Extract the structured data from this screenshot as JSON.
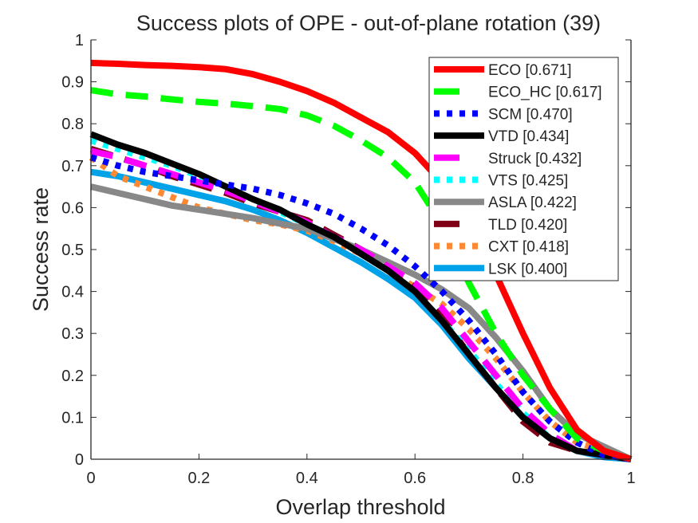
{
  "chart_data": {
    "type": "line",
    "title": "Success plots of OPE - out-of-plane rotation (39)",
    "xlabel": "Overlap threshold",
    "ylabel": "Success rate",
    "xlim": [
      0,
      1
    ],
    "ylim": [
      0,
      1
    ],
    "xticks": [
      0,
      0.2,
      0.4,
      0.6,
      0.8,
      1
    ],
    "xtick_labels": [
      "0",
      "0.2",
      "0.4",
      "0.6",
      "0.8",
      "1"
    ],
    "yticks": [
      0,
      0.1,
      0.2,
      0.3,
      0.4,
      0.5,
      0.6,
      0.7,
      0.8,
      0.9,
      1
    ],
    "ytick_labels": [
      "0",
      "0.1",
      "0.2",
      "0.3",
      "0.4",
      "0.5",
      "0.6",
      "0.7",
      "0.8",
      "0.9",
      "1"
    ],
    "grid": false,
    "legend_position": "top-right",
    "x": [
      0,
      0.05,
      0.1,
      0.15,
      0.2,
      0.25,
      0.3,
      0.35,
      0.4,
      0.45,
      0.5,
      0.55,
      0.6,
      0.65,
      0.7,
      0.75,
      0.8,
      0.85,
      0.9,
      0.95,
      1.0
    ],
    "series": [
      {
        "name": "ECO",
        "label": "ECO [0.671]",
        "auc": 0.671,
        "color": "#ff0000",
        "style": "solid",
        "values": [
          0.945,
          0.943,
          0.94,
          0.938,
          0.935,
          0.93,
          0.918,
          0.9,
          0.878,
          0.85,
          0.815,
          0.78,
          0.73,
          0.66,
          0.58,
          0.44,
          0.3,
          0.17,
          0.07,
          0.02,
          0.0
        ]
      },
      {
        "name": "ECO_HC",
        "label": "ECO_HC [0.617]",
        "auc": 0.617,
        "color": "#00ff00",
        "style": "dashed",
        "values": [
          0.88,
          0.87,
          0.865,
          0.858,
          0.852,
          0.848,
          0.842,
          0.835,
          0.82,
          0.795,
          0.76,
          0.72,
          0.66,
          0.56,
          0.42,
          0.3,
          0.2,
          0.12,
          0.05,
          0.02,
          0.0
        ]
      },
      {
        "name": "SCM",
        "label": "SCM [0.470]",
        "auc": 0.47,
        "color": "#0000ff",
        "style": "dotted",
        "values": [
          0.72,
          0.7,
          0.685,
          0.675,
          0.665,
          0.655,
          0.645,
          0.63,
          0.61,
          0.585,
          0.55,
          0.51,
          0.46,
          0.4,
          0.33,
          0.25,
          0.16,
          0.09,
          0.04,
          0.01,
          0.0
        ]
      },
      {
        "name": "VTD",
        "label": "VTD [0.434]",
        "auc": 0.434,
        "color": "#000000",
        "style": "solid",
        "values": [
          0.775,
          0.75,
          0.73,
          0.705,
          0.68,
          0.65,
          0.62,
          0.595,
          0.56,
          0.53,
          0.49,
          0.45,
          0.4,
          0.33,
          0.25,
          0.17,
          0.1,
          0.05,
          0.02,
          0.01,
          0.0
        ]
      },
      {
        "name": "Struck",
        "label": "Struck [0.432]",
        "auc": 0.432,
        "color": "#ff00ff",
        "style": "dashed",
        "values": [
          0.735,
          0.72,
          0.7,
          0.68,
          0.66,
          0.64,
          0.615,
          0.59,
          0.565,
          0.53,
          0.5,
          0.46,
          0.42,
          0.36,
          0.28,
          0.2,
          0.12,
          0.06,
          0.02,
          0.01,
          0.0
        ]
      },
      {
        "name": "VTS",
        "label": "VTS [0.425]",
        "auc": 0.425,
        "color": "#00ffff",
        "style": "dotted",
        "values": [
          0.76,
          0.74,
          0.72,
          0.7,
          0.675,
          0.65,
          0.62,
          0.59,
          0.56,
          0.53,
          0.49,
          0.45,
          0.4,
          0.33,
          0.26,
          0.18,
          0.11,
          0.05,
          0.02,
          0.01,
          0.0
        ]
      },
      {
        "name": "ASLA",
        "label": "ASLA [0.422]",
        "auc": 0.422,
        "color": "#888888",
        "style": "solid",
        "values": [
          0.65,
          0.635,
          0.62,
          0.605,
          0.595,
          0.585,
          0.575,
          0.562,
          0.55,
          0.525,
          0.5,
          0.47,
          0.44,
          0.405,
          0.36,
          0.29,
          0.21,
          0.12,
          0.06,
          0.03,
          0.0
        ]
      },
      {
        "name": "TLD",
        "label": "TLD [0.420]",
        "auc": 0.42,
        "color": "#800015",
        "style": "dashed",
        "values": [
          0.74,
          0.72,
          0.7,
          0.675,
          0.655,
          0.635,
          0.61,
          0.59,
          0.57,
          0.535,
          0.5,
          0.46,
          0.41,
          0.34,
          0.25,
          0.17,
          0.09,
          0.04,
          0.02,
          0.01,
          0.0
        ]
      },
      {
        "name": "CXT",
        "label": "CXT [0.418]",
        "auc": 0.418,
        "color": "#ff8833",
        "style": "dotted",
        "values": [
          0.72,
          0.675,
          0.65,
          0.625,
          0.6,
          0.585,
          0.57,
          0.56,
          0.545,
          0.52,
          0.49,
          0.45,
          0.41,
          0.37,
          0.31,
          0.24,
          0.16,
          0.09,
          0.04,
          0.02,
          0.0
        ]
      },
      {
        "name": "LSK",
        "label": "LSK [0.400]",
        "auc": 0.4,
        "color": "#00a2e8",
        "style": "solid",
        "values": [
          0.685,
          0.675,
          0.66,
          0.645,
          0.63,
          0.615,
          0.595,
          0.57,
          0.54,
          0.505,
          0.47,
          0.43,
          0.385,
          0.32,
          0.24,
          0.17,
          0.1,
          0.05,
          0.02,
          0.005,
          0.0
        ]
      }
    ]
  }
}
